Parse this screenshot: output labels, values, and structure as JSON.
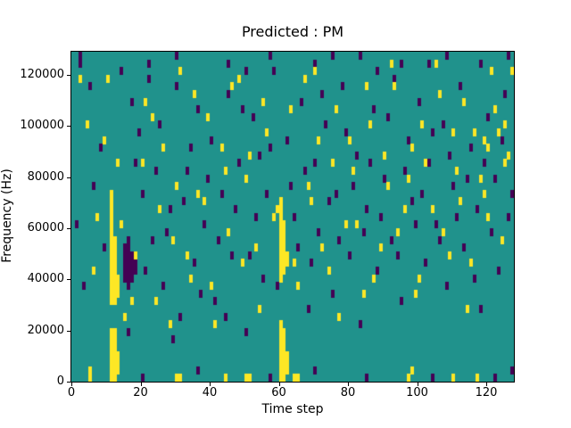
{
  "chart_data": {
    "type": "heatmap",
    "title": "Predicted : PM",
    "xlabel": "Time step",
    "ylabel": "Frequency (Hz)",
    "x_range": [
      0,
      128
    ],
    "y_range": [
      0,
      129000
    ],
    "xticks": [
      0,
      20,
      40,
      60,
      80,
      100,
      120
    ],
    "yticks": [
      0,
      20000,
      40000,
      60000,
      80000,
      100000,
      120000
    ],
    "grid": {
      "cols": 128,
      "rows": 43,
      "hz_per_row": 3000
    },
    "colors": {
      "background": "#20928c",
      "high": "#fde725",
      "low": "#440154"
    },
    "legend": "none",
    "high_cells": [
      [
        11,
        0
      ],
      [
        11,
        1
      ],
      [
        11,
        2
      ],
      [
        11,
        3
      ],
      [
        11,
        4
      ],
      [
        11,
        5
      ],
      [
        11,
        6
      ],
      [
        11,
        10
      ],
      [
        11,
        11
      ],
      [
        11,
        12
      ],
      [
        11,
        13
      ],
      [
        11,
        14
      ],
      [
        11,
        15
      ],
      [
        11,
        16
      ],
      [
        11,
        17
      ],
      [
        11,
        18
      ],
      [
        11,
        19
      ],
      [
        11,
        20
      ],
      [
        11,
        21
      ],
      [
        11,
        22
      ],
      [
        11,
        23
      ],
      [
        11,
        24
      ],
      [
        12,
        0
      ],
      [
        12,
        1
      ],
      [
        12,
        2
      ],
      [
        12,
        3
      ],
      [
        12,
        4
      ],
      [
        12,
        5
      ],
      [
        12,
        6
      ],
      [
        12,
        10
      ],
      [
        12,
        11
      ],
      [
        12,
        12
      ],
      [
        12,
        13
      ],
      [
        12,
        14
      ],
      [
        12,
        15
      ],
      [
        12,
        16
      ],
      [
        12,
        17
      ],
      [
        12,
        18
      ],
      [
        13,
        1
      ],
      [
        13,
        2
      ],
      [
        13,
        3
      ],
      [
        13,
        11
      ],
      [
        13,
        12
      ],
      [
        13,
        13
      ],
      [
        60,
        0
      ],
      [
        60,
        1
      ],
      [
        60,
        2
      ],
      [
        60,
        3
      ],
      [
        60,
        4
      ],
      [
        60,
        5
      ],
      [
        60,
        6
      ],
      [
        60,
        7
      ],
      [
        60,
        13
      ],
      [
        60,
        14
      ],
      [
        60,
        15
      ],
      [
        60,
        16
      ],
      [
        60,
        17
      ],
      [
        60,
        18
      ],
      [
        60,
        19
      ],
      [
        60,
        20
      ],
      [
        60,
        21
      ],
      [
        60,
        22
      ],
      [
        60,
        23
      ],
      [
        61,
        0
      ],
      [
        61,
        1
      ],
      [
        61,
        2
      ],
      [
        61,
        3
      ],
      [
        61,
        4
      ],
      [
        61,
        5
      ],
      [
        61,
        6
      ],
      [
        61,
        14
      ],
      [
        61,
        15
      ],
      [
        61,
        16
      ],
      [
        61,
        17
      ],
      [
        61,
        18
      ],
      [
        61,
        19
      ],
      [
        61,
        20
      ],
      [
        62,
        1
      ],
      [
        62,
        2
      ],
      [
        62,
        3
      ],
      [
        62,
        15
      ],
      [
        62,
        16
      ],
      [
        2,
        39
      ],
      [
        4,
        33
      ],
      [
        5,
        0
      ],
      [
        5,
        1
      ],
      [
        6,
        14
      ],
      [
        7,
        21
      ],
      [
        9,
        31
      ],
      [
        10,
        39
      ],
      [
        13,
        28
      ],
      [
        14,
        20
      ],
      [
        15,
        8
      ],
      [
        17,
        10
      ],
      [
        18,
        16
      ],
      [
        20,
        28
      ],
      [
        21,
        36
      ],
      [
        23,
        34
      ],
      [
        24,
        10
      ],
      [
        25,
        22
      ],
      [
        26,
        30
      ],
      [
        28,
        7
      ],
      [
        29,
        18
      ],
      [
        30,
        0
      ],
      [
        30,
        25
      ],
      [
        31,
        0
      ],
      [
        31,
        40
      ],
      [
        33,
        16
      ],
      [
        34,
        13
      ],
      [
        35,
        37
      ],
      [
        36,
        24
      ],
      [
        38,
        23
      ],
      [
        39,
        34
      ],
      [
        40,
        12
      ],
      [
        41,
        7
      ],
      [
        43,
        30
      ],
      [
        44,
        0
      ],
      [
        44,
        27
      ],
      [
        45,
        19
      ],
      [
        46,
        38
      ],
      [
        48,
        39
      ],
      [
        49,
        15
      ],
      [
        50,
        0
      ],
      [
        50,
        26
      ],
      [
        51,
        0
      ],
      [
        51,
        29
      ],
      [
        53,
        17
      ],
      [
        54,
        9
      ],
      [
        55,
        36
      ],
      [
        56,
        32
      ],
      [
        58,
        21
      ],
      [
        59,
        22
      ],
      [
        63,
        35
      ],
      [
        64,
        0
      ],
      [
        64,
        15
      ],
      [
        65,
        0
      ],
      [
        65,
        12
      ],
      [
        67,
        39
      ],
      [
        68,
        25
      ],
      [
        69,
        23
      ],
      [
        70,
        40
      ],
      [
        71,
        31
      ],
      [
        72,
        17
      ],
      [
        74,
        14
      ],
      [
        75,
        28
      ],
      [
        76,
        35
      ],
      [
        77,
        8
      ],
      [
        79,
        20
      ],
      [
        80,
        31
      ],
      [
        81,
        27
      ],
      [
        82,
        20
      ],
      [
        84,
        11
      ],
      [
        85,
        38
      ],
      [
        86,
        33
      ],
      [
        87,
        13
      ],
      [
        89,
        17
      ],
      [
        90,
        29
      ],
      [
        91,
        25
      ],
      [
        92,
        41
      ],
      [
        93,
        38
      ],
      [
        94,
        19
      ],
      [
        96,
        22
      ],
      [
        97,
        0
      ],
      [
        97,
        26
      ],
      [
        98,
        1
      ],
      [
        98,
        30
      ],
      [
        99,
        11
      ],
      [
        100,
        13
      ],
      [
        101,
        33
      ],
      [
        102,
        28
      ],
      [
        104,
        22
      ],
      [
        105,
        41
      ],
      [
        106,
        37
      ],
      [
        107,
        19
      ],
      [
        109,
        16
      ],
      [
        110,
        0
      ],
      [
        110,
        32
      ],
      [
        111,
        27
      ],
      [
        112,
        23
      ],
      [
        113,
        36
      ],
      [
        114,
        9
      ],
      [
        115,
        15
      ],
      [
        116,
        32
      ],
      [
        117,
        0
      ],
      [
        118,
        26
      ],
      [
        119,
        24
      ],
      [
        119,
        31
      ],
      [
        120,
        21
      ],
      [
        120,
        30
      ],
      [
        121,
        40
      ],
      [
        122,
        35
      ],
      [
        123,
        32
      ],
      [
        124,
        18
      ],
      [
        125,
        28
      ],
      [
        125,
        33
      ],
      [
        126,
        29
      ],
      [
        127,
        40
      ]
    ],
    "low_cells": [
      [
        15,
        13
      ],
      [
        15,
        14
      ],
      [
        15,
        15
      ],
      [
        15,
        16
      ],
      [
        15,
        17
      ],
      [
        16,
        12
      ],
      [
        16,
        13
      ],
      [
        16,
        14
      ],
      [
        16,
        15
      ],
      [
        16,
        16
      ],
      [
        16,
        17
      ],
      [
        16,
        18
      ],
      [
        17,
        13
      ],
      [
        17,
        14
      ],
      [
        17,
        15
      ],
      [
        17,
        16
      ],
      [
        18,
        14
      ],
      [
        18,
        15
      ],
      [
        2,
        42
      ],
      [
        22,
        41
      ],
      [
        30,
        42
      ],
      [
        45,
        41
      ],
      [
        50,
        40
      ],
      [
        57,
        42
      ],
      [
        70,
        41
      ],
      [
        75,
        42
      ],
      [
        83,
        42
      ],
      [
        88,
        40
      ],
      [
        95,
        41
      ],
      [
        103,
        41
      ],
      [
        108,
        42
      ],
      [
        118,
        41
      ],
      [
        126,
        42
      ],
      [
        1,
        20
      ],
      [
        2,
        41
      ],
      [
        3,
        12
      ],
      [
        5,
        38
      ],
      [
        6,
        25
      ],
      [
        8,
        30
      ],
      [
        9,
        17
      ],
      [
        14,
        40
      ],
      [
        16,
        6
      ],
      [
        17,
        36
      ],
      [
        18,
        28
      ],
      [
        19,
        32
      ],
      [
        20,
        0
      ],
      [
        20,
        24
      ],
      [
        21,
        14
      ],
      [
        22,
        39
      ],
      [
        23,
        18
      ],
      [
        24,
        27
      ],
      [
        25,
        33
      ],
      [
        26,
        12
      ],
      [
        27,
        19
      ],
      [
        28,
        22
      ],
      [
        29,
        5
      ],
      [
        30,
        38
      ],
      [
        31,
        8
      ],
      [
        32,
        23
      ],
      [
        33,
        27
      ],
      [
        34,
        30
      ],
      [
        35,
        15
      ],
      [
        36,
        1
      ],
      [
        36,
        35
      ],
      [
        37,
        11
      ],
      [
        38,
        20
      ],
      [
        39,
        26
      ],
      [
        40,
        31
      ],
      [
        41,
        10
      ],
      [
        42,
        18
      ],
      [
        43,
        24
      ],
      [
        44,
        8
      ],
      [
        45,
        37
      ],
      [
        46,
        16
      ],
      [
        47,
        22
      ],
      [
        48,
        28
      ],
      [
        49,
        35
      ],
      [
        50,
        6
      ],
      [
        51,
        16
      ],
      [
        52,
        34
      ],
      [
        53,
        21
      ],
      [
        54,
        29
      ],
      [
        55,
        13
      ],
      [
        56,
        24
      ],
      [
        57,
        0
      ],
      [
        57,
        30
      ],
      [
        58,
        40
      ],
      [
        59,
        12
      ],
      [
        62,
        31
      ],
      [
        63,
        25
      ],
      [
        64,
        21
      ],
      [
        65,
        17
      ],
      [
        66,
        36
      ],
      [
        67,
        27
      ],
      [
        68,
        9
      ],
      [
        69,
        15
      ],
      [
        70,
        1
      ],
      [
        70,
        28
      ],
      [
        71,
        19
      ],
      [
        72,
        37
      ],
      [
        73,
        33
      ],
      [
        74,
        23
      ],
      [
        75,
        11
      ],
      [
        76,
        24
      ],
      [
        77,
        18
      ],
      [
        78,
        38
      ],
      [
        79,
        32
      ],
      [
        80,
        16
      ],
      [
        81,
        25
      ],
      [
        82,
        29
      ],
      [
        83,
        7
      ],
      [
        84,
        19
      ],
      [
        85,
        0
      ],
      [
        85,
        22
      ],
      [
        86,
        28
      ],
      [
        87,
        35
      ],
      [
        88,
        14
      ],
      [
        89,
        21
      ],
      [
        90,
        26
      ],
      [
        91,
        34
      ],
      [
        92,
        18
      ],
      [
        93,
        39
      ],
      [
        94,
        16
      ],
      [
        95,
        10
      ],
      [
        96,
        27
      ],
      [
        97,
        31
      ],
      [
        98,
        23
      ],
      [
        99,
        20
      ],
      [
        100,
        36
      ],
      [
        101,
        24
      ],
      [
        102,
        15
      ],
      [
        103,
        28
      ],
      [
        104,
        0
      ],
      [
        104,
        32
      ],
      [
        105,
        20
      ],
      [
        106,
        18
      ],
      [
        107,
        33
      ],
      [
        108,
        12
      ],
      [
        109,
        29
      ],
      [
        110,
        25
      ],
      [
        111,
        21
      ],
      [
        112,
        38
      ],
      [
        113,
        17
      ],
      [
        114,
        26
      ],
      [
        115,
        30
      ],
      [
        116,
        13
      ],
      [
        117,
        22
      ],
      [
        118,
        9
      ],
      [
        119,
        28
      ],
      [
        120,
        34
      ],
      [
        121,
        19
      ],
      [
        122,
        0
      ],
      [
        122,
        26
      ],
      [
        123,
        14
      ],
      [
        124,
        31
      ],
      [
        125,
        37
      ],
      [
        126,
        21
      ],
      [
        127,
        1
      ],
      [
        127,
        24
      ]
    ]
  }
}
